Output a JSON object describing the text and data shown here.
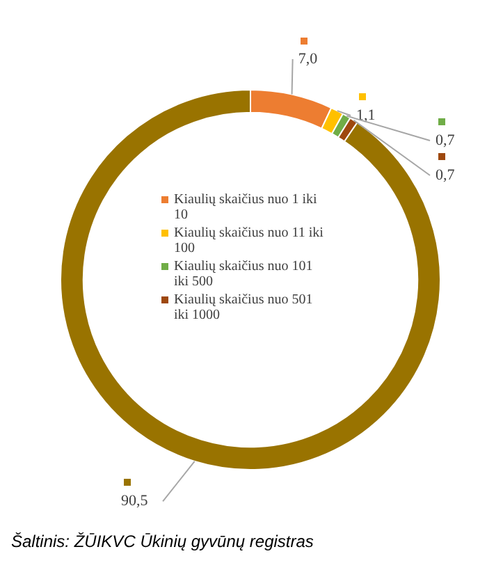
{
  "chart_data": {
    "type": "donut",
    "categories": [
      "Kiaulių skaičius nuo 1 iki 10",
      "Kiaulių skaičius nuo 11 iki 100",
      "Kiaulių skaičius nuo 101 iki 500",
      "Kiaulių skaičius nuo 501 iki 1000",
      null
    ],
    "values": [
      7.0,
      1.1,
      0.7,
      0.7,
      90.5
    ],
    "value_labels": [
      "7,0",
      "1,1",
      "0,7",
      "0,7",
      "90,5"
    ],
    "colors": [
      "#ed7d31",
      "#ffc000",
      "#70ad47",
      "#9e480e",
      "#997300"
    ],
    "legend": "center",
    "annotations": [
      "Šaltinis: ŽŪIKVC Ūkinių gyvūnų registras"
    ]
  }
}
